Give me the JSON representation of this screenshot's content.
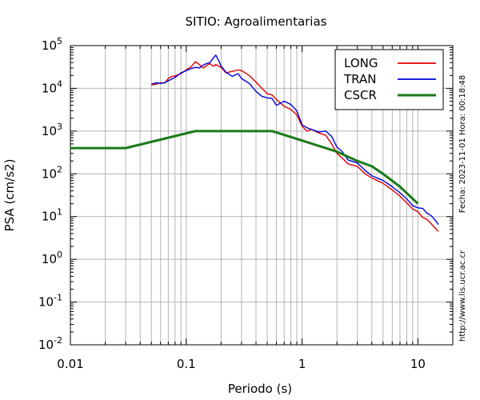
{
  "chart_data": {
    "type": "line",
    "title": "SITIO: Agroalimentarias",
    "xlabel": "Periodo (s)",
    "ylabel": "PSA (cm/s2)",
    "x_scale": "log",
    "y_scale": "log",
    "xlim": [
      0.01,
      20
    ],
    "ylim": [
      0.01,
      100000
    ],
    "x_ticks": [
      {
        "value": 0.01,
        "label": "0.01"
      },
      {
        "value": 0.1,
        "label": "0.1"
      },
      {
        "value": 1,
        "label": "1"
      },
      {
        "value": 10,
        "label": "10"
      }
    ],
    "y_ticks": [
      {
        "value": 0.01,
        "base": "10",
        "exp": "-2"
      },
      {
        "value": 0.1,
        "base": "10",
        "exp": "-1"
      },
      {
        "value": 1,
        "base": "10",
        "exp": "0"
      },
      {
        "value": 10,
        "base": "10",
        "exp": "1"
      },
      {
        "value": 100,
        "base": "10",
        "exp": "2"
      },
      {
        "value": 1000,
        "base": "10",
        "exp": "3"
      },
      {
        "value": 10000,
        "base": "10",
        "exp": "4"
      },
      {
        "value": 100000,
        "base": "10",
        "exp": "5"
      }
    ],
    "grid": true,
    "legend_position": "top-right",
    "series": [
      {
        "name": "LONG",
        "color": "#e00000",
        "points": [
          [
            0.05,
            12000
          ],
          [
            0.055,
            12500
          ],
          [
            0.06,
            13500
          ],
          [
            0.065,
            13200
          ],
          [
            0.07,
            17000
          ],
          [
            0.075,
            19000
          ],
          [
            0.08,
            19500
          ],
          [
            0.09,
            22000
          ],
          [
            0.1,
            27000
          ],
          [
            0.11,
            32000
          ],
          [
            0.12,
            42000
          ],
          [
            0.13,
            36000
          ],
          [
            0.14,
            30000
          ],
          [
            0.15,
            34000
          ],
          [
            0.16,
            38000
          ],
          [
            0.17,
            33000
          ],
          [
            0.18,
            36000
          ],
          [
            0.2,
            31000
          ],
          [
            0.22,
            23000
          ],
          [
            0.25,
            25000
          ],
          [
            0.28,
            27000
          ],
          [
            0.3,
            26000
          ],
          [
            0.35,
            20000
          ],
          [
            0.4,
            14000
          ],
          [
            0.45,
            10000
          ],
          [
            0.5,
            7500
          ],
          [
            0.55,
            7000
          ],
          [
            0.6,
            5500
          ],
          [
            0.7,
            3800
          ],
          [
            0.8,
            3200
          ],
          [
            0.9,
            2400
          ],
          [
            1.0,
            1300
          ],
          [
            1.1,
            1000
          ],
          [
            1.2,
            1100
          ],
          [
            1.4,
            900
          ],
          [
            1.6,
            800
          ],
          [
            1.8,
            500
          ],
          [
            2.0,
            300
          ],
          [
            2.2,
            240
          ],
          [
            2.5,
            170
          ],
          [
            3.0,
            150
          ],
          [
            3.5,
            100
          ],
          [
            4.0,
            80
          ],
          [
            5.0,
            60
          ],
          [
            6.0,
            42
          ],
          [
            7.0,
            30
          ],
          [
            8.0,
            21
          ],
          [
            9.0,
            15
          ],
          [
            10.0,
            13
          ],
          [
            11.0,
            9.5
          ],
          [
            12.0,
            8.5
          ],
          [
            13.0,
            6.8
          ],
          [
            14.0,
            5.5
          ],
          [
            15.0,
            4.5
          ]
        ]
      },
      {
        "name": "TRAN",
        "color": "#0000dd",
        "points": [
          [
            0.05,
            12500
          ],
          [
            0.055,
            13500
          ],
          [
            0.06,
            13000
          ],
          [
            0.065,
            13500
          ],
          [
            0.07,
            15000
          ],
          [
            0.08,
            18000
          ],
          [
            0.09,
            23000
          ],
          [
            0.1,
            26000
          ],
          [
            0.11,
            29000
          ],
          [
            0.12,
            31000
          ],
          [
            0.13,
            30000
          ],
          [
            0.14,
            35000
          ],
          [
            0.15,
            38000
          ],
          [
            0.16,
            40000
          ],
          [
            0.17,
            50000
          ],
          [
            0.18,
            60000
          ],
          [
            0.19,
            45000
          ],
          [
            0.2,
            33000
          ],
          [
            0.22,
            24000
          ],
          [
            0.25,
            19000
          ],
          [
            0.28,
            22000
          ],
          [
            0.3,
            17000
          ],
          [
            0.35,
            13000
          ],
          [
            0.4,
            8500
          ],
          [
            0.45,
            6500
          ],
          [
            0.5,
            6000
          ],
          [
            0.55,
            5800
          ],
          [
            0.6,
            4000
          ],
          [
            0.7,
            5000
          ],
          [
            0.8,
            4200
          ],
          [
            0.9,
            3000
          ],
          [
            1.0,
            1400
          ],
          [
            1.1,
            1200
          ],
          [
            1.2,
            1100
          ],
          [
            1.4,
            950
          ],
          [
            1.6,
            1000
          ],
          [
            1.8,
            750
          ],
          [
            2.0,
            420
          ],
          [
            2.2,
            340
          ],
          [
            2.5,
            210
          ],
          [
            3.0,
            180
          ],
          [
            3.5,
            120
          ],
          [
            4.0,
            90
          ],
          [
            5.0,
            70
          ],
          [
            6.0,
            50
          ],
          [
            7.0,
            36
          ],
          [
            8.0,
            26
          ],
          [
            9.0,
            18
          ],
          [
            10.0,
            16
          ],
          [
            11.0,
            15.5
          ],
          [
            12.0,
            12
          ],
          [
            13.0,
            10.5
          ],
          [
            14.0,
            8.5
          ],
          [
            15.0,
            6.5
          ]
        ]
      },
      {
        "name": "CSCR",
        "color": "#1a7a1a",
        "points": [
          [
            0.01,
            400
          ],
          [
            0.03,
            400
          ],
          [
            0.12,
            1000
          ],
          [
            0.55,
            1000
          ],
          [
            1.0,
            600
          ],
          [
            2.0,
            330
          ],
          [
            3.0,
            200
          ],
          [
            4.0,
            150
          ],
          [
            5.0,
            100
          ],
          [
            7.0,
            50
          ],
          [
            10.0,
            20
          ]
        ]
      }
    ]
  },
  "side_text": {
    "date_label": "Fecha: 2023-11-01  Hora: 00:18:48",
    "url": "http://www.lis.ucr.ac.cr"
  }
}
